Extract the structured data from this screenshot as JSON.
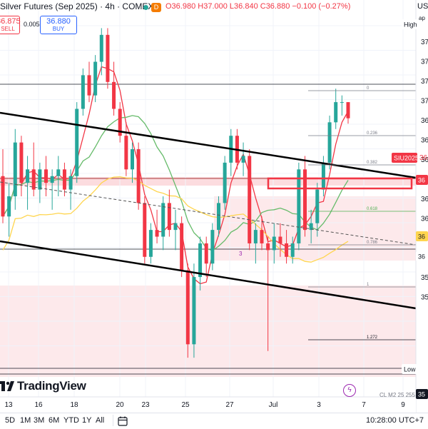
{
  "header": {
    "title": "Silver Futures (Sep 2025) · 4h · COMEX",
    "open": "O36.980",
    "high": "H37.000",
    "low": "L36.840",
    "close": "C36.880",
    "change": "−0.100 (−0.27%)",
    "sell_price": "36.875",
    "sell_label": "SELL",
    "buy_price": "36.880",
    "buy_label": "BUY",
    "spread": "0.005",
    "market_badge": "D",
    "currency_fragment": "US",
    "right_fragment": "ap"
  },
  "price_axis": {
    "labels": [
      "37",
      "37",
      "37",
      "37",
      "36",
      "36",
      "36",
      "36",
      "36",
      "36",
      "36",
      "35",
      "35",
      "35"
    ],
    "high_tag": "High",
    "low_tag": "Low",
    "symbol_tag": "SIU2025",
    "symbol_price": "36",
    "level_tags": [
      "36",
      "36",
      "36"
    ],
    "ohlc_tag": "35"
  },
  "fib_labels": [
    "0",
    "0.236",
    "0.382",
    "0.618",
    "0.786",
    "1",
    "1.272"
  ],
  "time_axis": {
    "labels": [
      "13",
      "16",
      "18",
      "20",
      "23",
      "25",
      "27",
      "Jul",
      "3",
      "7",
      "9"
    ]
  },
  "bottom_bar": {
    "ranges": [
      "5D",
      "1M",
      "3M",
      "6M",
      "YTD",
      "1Y",
      "All"
    ],
    "clock": "10:28:00 UTC+7"
  },
  "overlay": {
    "mid_label": "3",
    "cl_label": "CL M2 25  255"
  },
  "logo": {
    "text": "TradingView"
  },
  "colors": {
    "up": "#26a69a",
    "down": "#f23645",
    "ma_fast": "#f23645",
    "ma_mid": "#66bb6a",
    "ma_slow": "#ffd54f",
    "zone": "#fde4e6",
    "channel": "#000000"
  },
  "chart_data": {
    "type": "candlestick",
    "symbol": "SIU2025",
    "timeframe": "4h",
    "x_ticks": [
      "13",
      "16",
      "18",
      "20",
      "23",
      "25",
      "27",
      "Jul",
      "3",
      "7",
      "9"
    ],
    "y_range": [
      35.0,
      37.6
    ],
    "candles": [
      [
        36.45,
        36.65,
        36.1,
        36.15
      ],
      [
        36.15,
        36.4,
        36.0,
        36.3
      ],
      [
        36.3,
        36.8,
        36.2,
        36.7
      ],
      [
        36.7,
        36.75,
        36.3,
        36.4
      ],
      [
        36.4,
        36.6,
        36.2,
        36.5
      ],
      [
        36.5,
        36.7,
        36.3,
        36.35
      ],
      [
        36.35,
        36.55,
        36.25,
        36.5
      ],
      [
        36.5,
        36.6,
        36.3,
        36.4
      ],
      [
        36.4,
        36.5,
        36.2,
        36.45
      ],
      [
        36.45,
        36.6,
        36.3,
        36.5
      ],
      [
        36.5,
        36.55,
        36.3,
        36.35
      ],
      [
        36.35,
        36.5,
        36.2,
        36.45
      ],
      [
        36.45,
        37.0,
        36.4,
        36.95
      ],
      [
        36.95,
        37.25,
        36.9,
        37.2
      ],
      [
        37.2,
        37.3,
        37.0,
        37.05
      ],
      [
        37.05,
        37.35,
        37.0,
        37.3
      ],
      [
        37.3,
        37.55,
        37.2,
        37.5
      ],
      [
        37.5,
        37.55,
        37.1,
        37.15
      ],
      [
        37.15,
        37.3,
        36.9,
        36.95
      ],
      [
        36.95,
        37.0,
        36.7,
        36.75
      ],
      [
        36.75,
        36.85,
        36.45,
        36.5
      ],
      [
        36.5,
        36.7,
        36.4,
        36.65
      ],
      [
        36.65,
        36.7,
        36.2,
        36.25
      ],
      [
        36.25,
        36.3,
        35.8,
        35.85
      ],
      [
        35.85,
        36.1,
        35.8,
        36.05
      ],
      [
        36.05,
        36.2,
        35.95,
        36.0
      ],
      [
        36.0,
        36.3,
        35.9,
        36.25
      ],
      [
        36.25,
        36.35,
        36.0,
        36.05
      ],
      [
        36.05,
        36.2,
        35.9,
        36.1
      ],
      [
        36.1,
        36.15,
        35.7,
        35.75
      ],
      [
        35.75,
        35.8,
        35.1,
        35.2
      ],
      [
        35.2,
        35.8,
        35.1,
        35.7
      ],
      [
        35.7,
        36.0,
        35.6,
        35.95
      ],
      [
        35.95,
        36.0,
        35.7,
        35.8
      ],
      [
        35.8,
        36.1,
        35.75,
        36.05
      ],
      [
        36.05,
        36.3,
        36.0,
        36.25
      ],
      [
        36.25,
        36.6,
        36.2,
        36.55
      ],
      [
        36.55,
        36.8,
        36.45,
        36.75
      ],
      [
        36.75,
        36.8,
        36.5,
        36.55
      ],
      [
        36.55,
        36.7,
        36.45,
        36.6
      ],
      [
        36.6,
        36.65,
        35.9,
        35.95
      ],
      [
        35.95,
        36.1,
        35.8,
        36.05
      ],
      [
        36.05,
        36.15,
        35.9,
        35.95
      ],
      [
        35.95,
        36.0,
        35.15,
        35.9
      ],
      [
        35.9,
        36.1,
        35.8,
        36.0
      ],
      [
        36.0,
        36.1,
        35.85,
        35.95
      ],
      [
        35.95,
        36.05,
        35.8,
        35.85
      ],
      [
        35.85,
        36.0,
        35.8,
        35.95
      ],
      [
        35.95,
        36.55,
        35.9,
        36.5
      ],
      [
        36.5,
        36.6,
        36.0,
        36.05
      ],
      [
        36.05,
        36.2,
        35.95,
        36.1
      ],
      [
        36.1,
        36.4,
        36.0,
        36.35
      ],
      [
        36.35,
        36.6,
        36.3,
        36.55
      ],
      [
        36.55,
        36.9,
        36.5,
        36.85
      ],
      [
        36.85,
        37.1,
        36.8,
        37.0
      ],
      [
        37.0,
        37.05,
        36.9,
        37.0
      ],
      [
        37.0,
        37.0,
        36.84,
        36.88
      ]
    ],
    "moving_averages": [
      "fast (red)",
      "mid (green)",
      "slow (yellow)"
    ],
    "fibonacci_levels": [
      0,
      0.236,
      0.382,
      0.618,
      0.786,
      1,
      1.272
    ],
    "grid": true
  }
}
